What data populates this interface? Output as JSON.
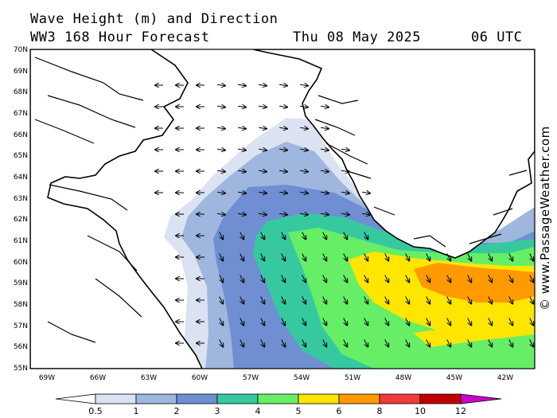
{
  "header": {
    "title_line1": "Wave Height (m) and Direction",
    "title_line2": "WW3 168 Hour Forecast",
    "datetime": "Thu 08 May 2025",
    "time": "06 UTC"
  },
  "watermark": "© www.PassageWeather.com",
  "axes": {
    "lat_labels": [
      "70N",
      "69N",
      "68N",
      "67N",
      "66N",
      "65N",
      "64N",
      "63N",
      "62N",
      "61N",
      "60N",
      "59N",
      "58N",
      "57N",
      "56N",
      "55N"
    ],
    "lon_labels": [
      "69W",
      "66W",
      "63W",
      "60W",
      "57W",
      "54W",
      "51W",
      "48W",
      "45W",
      "42W"
    ]
  },
  "colorbar": {
    "labels": [
      "0.5",
      "1",
      "2",
      "3",
      "4",
      "5",
      "6",
      "8",
      "10",
      "12"
    ],
    "colors": [
      "#ffffff",
      "#dbe3f2",
      "#9fb6df",
      "#6f8fd2",
      "#36c9a0",
      "#66ef66",
      "#ffe600",
      "#ff9a00",
      "#ef3b3b",
      "#c00000",
      "#cc00cc"
    ]
  },
  "regions": {
    "land_color": "#ffffff",
    "coast_color": "#000000",
    "arrow_color": "#000000"
  }
}
